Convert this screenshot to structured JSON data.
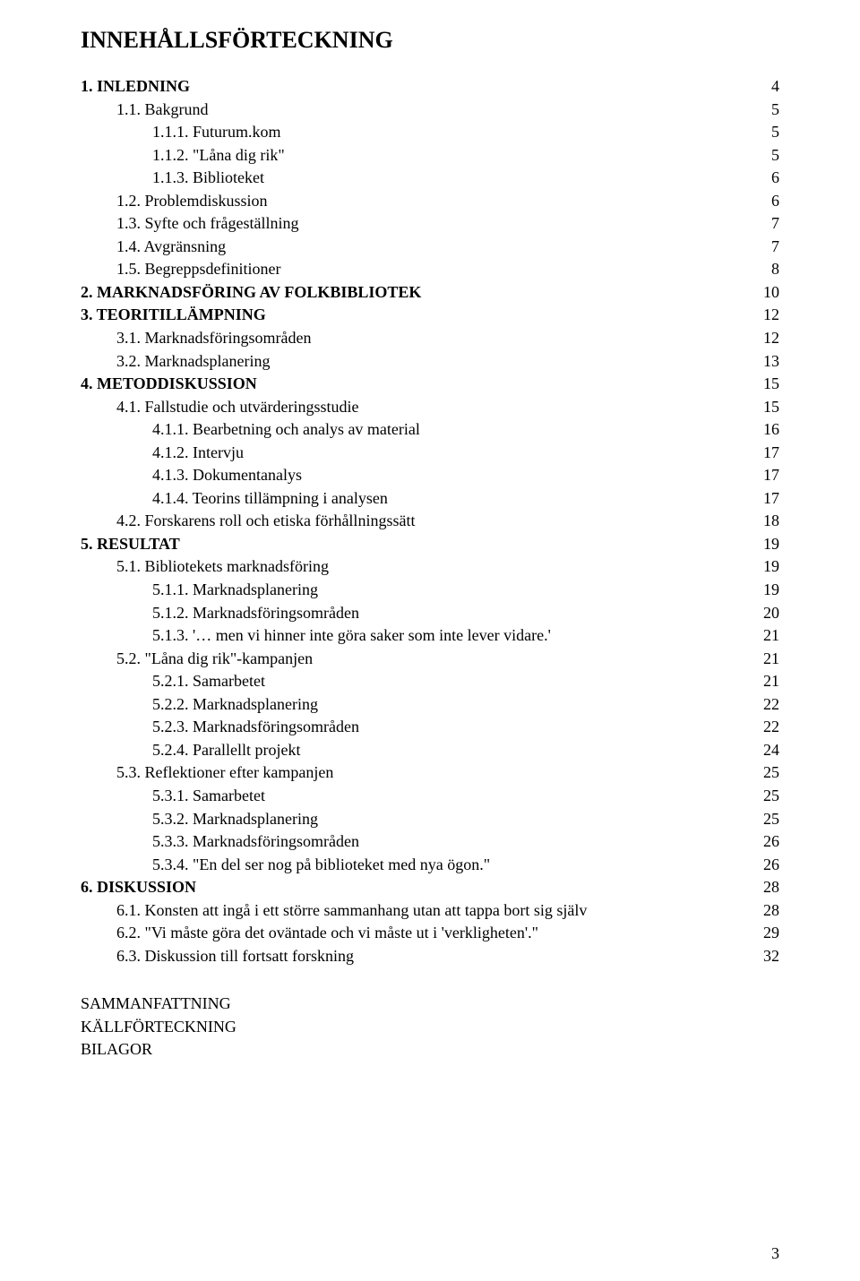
{
  "title": "INNEHÅLLSFÖRTECKNING",
  "toc": [
    {
      "level": 0,
      "bold": true,
      "label": "1.   INLEDNING",
      "page": "4"
    },
    {
      "level": 1,
      "bold": false,
      "label": "1.1. Bakgrund",
      "page": "5"
    },
    {
      "level": 2,
      "bold": false,
      "label": "1.1.1. Futurum.kom",
      "page": "5"
    },
    {
      "level": 2,
      "bold": false,
      "label": "1.1.2. \"Låna dig rik\"",
      "page": "5"
    },
    {
      "level": 2,
      "bold": false,
      "label": "1.1.3. Biblioteket",
      "page": "6"
    },
    {
      "level": 1,
      "bold": false,
      "label": "1.2. Problemdiskussion",
      "page": "6"
    },
    {
      "level": 1,
      "bold": false,
      "label": "1.3. Syfte och frågeställning",
      "page": "7"
    },
    {
      "level": 1,
      "bold": false,
      "label": "1.4. Avgränsning",
      "page": "7"
    },
    {
      "level": 1,
      "bold": false,
      "label": "1.5. Begreppsdefinitioner",
      "page": "8"
    },
    {
      "level": 0,
      "bold": true,
      "label": "2.   MARKNADSFÖRING AV FOLKBIBLIOTEK",
      "page": "10"
    },
    {
      "level": 0,
      "bold": true,
      "label": "3.   TEORITILLÄMPNING",
      "page": "12"
    },
    {
      "level": 1,
      "bold": false,
      "label": "3.1. Marknadsföringsområden",
      "page": "12"
    },
    {
      "level": 1,
      "bold": false,
      "label": "3.2. Marknadsplanering",
      "page": "13"
    },
    {
      "level": 0,
      "bold": true,
      "label": "4.   METODDISKUSSION",
      "page": "15"
    },
    {
      "level": 1,
      "bold": false,
      "label": "4.1. Fallstudie och utvärderingsstudie",
      "page": "15"
    },
    {
      "level": 2,
      "bold": false,
      "label": "4.1.1. Bearbetning och analys av material",
      "page": "16"
    },
    {
      "level": 2,
      "bold": false,
      "label": "4.1.2. Intervju",
      "page": "17"
    },
    {
      "level": 2,
      "bold": false,
      "label": "4.1.3. Dokumentanalys",
      "page": "17"
    },
    {
      "level": 2,
      "bold": false,
      "label": "4.1.4. Teorins tillämpning i analysen",
      "page": "17"
    },
    {
      "level": 1,
      "bold": false,
      "label": "4.2. Forskarens roll och etiska förhållningssätt",
      "page": "18"
    },
    {
      "level": 0,
      "bold": true,
      "label": "5.   RESULTAT",
      "page": "19"
    },
    {
      "level": 1,
      "bold": false,
      "label": "5.1. Bibliotekets marknadsföring",
      "page": "19"
    },
    {
      "level": 2,
      "bold": false,
      "label": "5.1.1. Marknadsplanering",
      "page": "19"
    },
    {
      "level": 2,
      "bold": false,
      "label": "5.1.2. Marknadsföringsområden",
      "page": "20"
    },
    {
      "level": 2,
      "bold": false,
      "label": "5.1.3. '… men vi hinner inte göra saker som inte lever vidare.'",
      "page": "21"
    },
    {
      "level": 1,
      "bold": false,
      "label": "5.2. \"Låna dig rik\"-kampanjen",
      "page": "21"
    },
    {
      "level": 2,
      "bold": false,
      "label": "5.2.1. Samarbetet",
      "page": "21"
    },
    {
      "level": 2,
      "bold": false,
      "label": "5.2.2. Marknadsplanering",
      "page": "22"
    },
    {
      "level": 2,
      "bold": false,
      "label": "5.2.3. Marknadsföringsområden",
      "page": "22"
    },
    {
      "level": 2,
      "bold": false,
      "label": "5.2.4. Parallellt projekt",
      "page": "24"
    },
    {
      "level": 1,
      "bold": false,
      "label": "5.3. Reflektioner efter kampanjen",
      "page": "25"
    },
    {
      "level": 2,
      "bold": false,
      "label": "5.3.1. Samarbetet",
      "page": "25"
    },
    {
      "level": 2,
      "bold": false,
      "label": "5.3.2. Marknadsplanering",
      "page": "25"
    },
    {
      "level": 2,
      "bold": false,
      "label": "5.3.3. Marknadsföringsområden",
      "page": "26"
    },
    {
      "level": 2,
      "bold": false,
      "label": "5.3.4. \"En del ser nog på biblioteket med nya ögon.\"",
      "page": "26"
    },
    {
      "level": 0,
      "bold": true,
      "label": "6.   DISKUSSION",
      "page": "28"
    },
    {
      "level": 1,
      "bold": false,
      "label": "6.1. Konsten att ingå i ett större sammanhang utan att tappa bort sig själv",
      "page": "28"
    },
    {
      "level": 1,
      "bold": false,
      "label": "6.2. \"Vi måste göra det oväntade och vi måste ut i 'verkligheten'.\"",
      "page": "29"
    },
    {
      "level": 1,
      "bold": false,
      "label": "6.3. Diskussion till fortsatt forskning",
      "page": "32"
    }
  ],
  "end_labels": [
    "SAMMANFATTNING",
    "KÄLLFÖRTECKNING",
    "BILAGOR"
  ],
  "page_number": "3"
}
